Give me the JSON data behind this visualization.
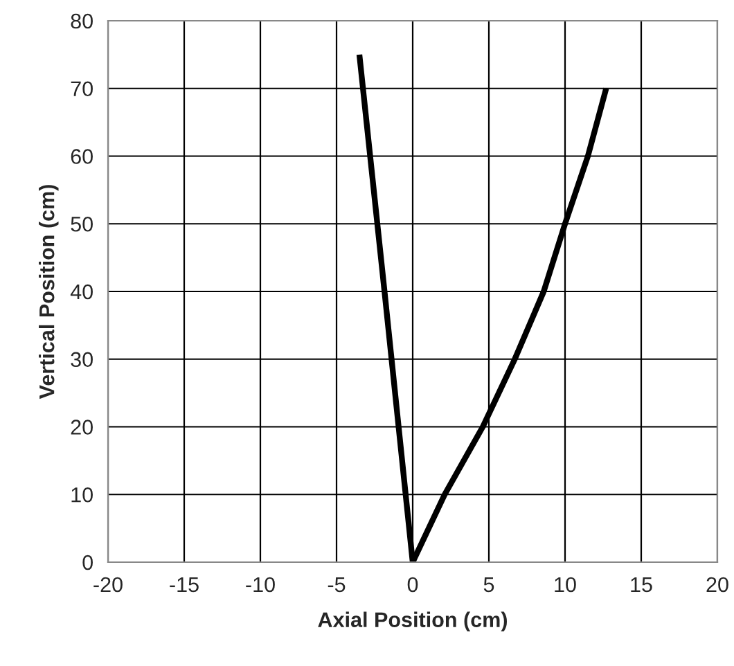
{
  "chart_data": {
    "type": "line",
    "xlabel": "Axial Position (cm)",
    "ylabel": "Vertical Position (cm)",
    "series": [
      {
        "color": "#000000",
        "x": [
          0,
          -1.85,
          -3.5
        ],
        "values": [
          0,
          40,
          75
        ]
      },
      {
        "color": "#000000",
        "x": [
          0,
          2.1,
          4.6,
          6.7,
          8.6,
          10.0,
          11.5,
          12.7
        ],
        "values": [
          0,
          10,
          20,
          30,
          40,
          50,
          60,
          70
        ]
      }
    ],
    "xlim": [
      -20,
      20
    ],
    "xticks": [
      -20,
      -15,
      -10,
      -5,
      0,
      5,
      10,
      15,
      20
    ],
    "ylim": [
      0,
      80
    ],
    "yticks": [
      0,
      10,
      20,
      30,
      40,
      50,
      60,
      70,
      80
    ],
    "grid": true,
    "legend": false,
    "marker": "none",
    "line_style": "solid"
  }
}
